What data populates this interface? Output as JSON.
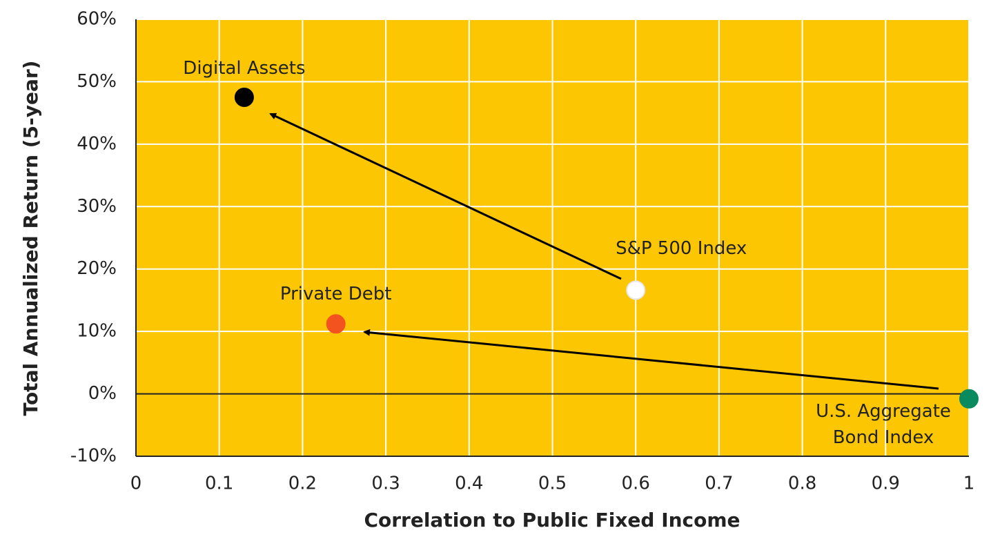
{
  "chart_data": {
    "type": "scatter",
    "x_label": "Correlation to Public Fixed Income",
    "y_label": "Total Annualized Return (5-year)",
    "xlim": [
      0,
      1
    ],
    "xticks": [
      0,
      0.1,
      0.2,
      0.3,
      0.4,
      0.5,
      0.6,
      0.7,
      0.8,
      0.9,
      1
    ],
    "ylim": [
      -10,
      60
    ],
    "yticks": [
      {
        "value": -10,
        "label": "-10%"
      },
      {
        "value": 0,
        "label": "0%"
      },
      {
        "value": 10,
        "label": "10%"
      },
      {
        "value": 20,
        "label": "20%"
      },
      {
        "value": 30,
        "label": "30%"
      },
      {
        "value": 40,
        "label": "40%"
      },
      {
        "value": 50,
        "label": "50%"
      },
      {
        "value": 60,
        "label": "60%"
      }
    ],
    "grid": true,
    "background": "#fcc603",
    "series": [
      {
        "name": "Digital Assets",
        "color": "#000000",
        "x": [
          0.13
        ],
        "values": [
          47.5
        ]
      },
      {
        "name": "S&P 500 Index",
        "color": "#ffffff",
        "x": [
          0.6
        ],
        "values": [
          16.6
        ]
      },
      {
        "name": "Private Debt",
        "color": "#f2531f",
        "x": [
          0.24
        ],
        "values": [
          11.2
        ]
      },
      {
        "name": "U.S. Aggregate Bond Index",
        "color": "#0a8a5f",
        "x": [
          1
        ],
        "values": [
          -0.8
        ]
      }
    ]
  }
}
